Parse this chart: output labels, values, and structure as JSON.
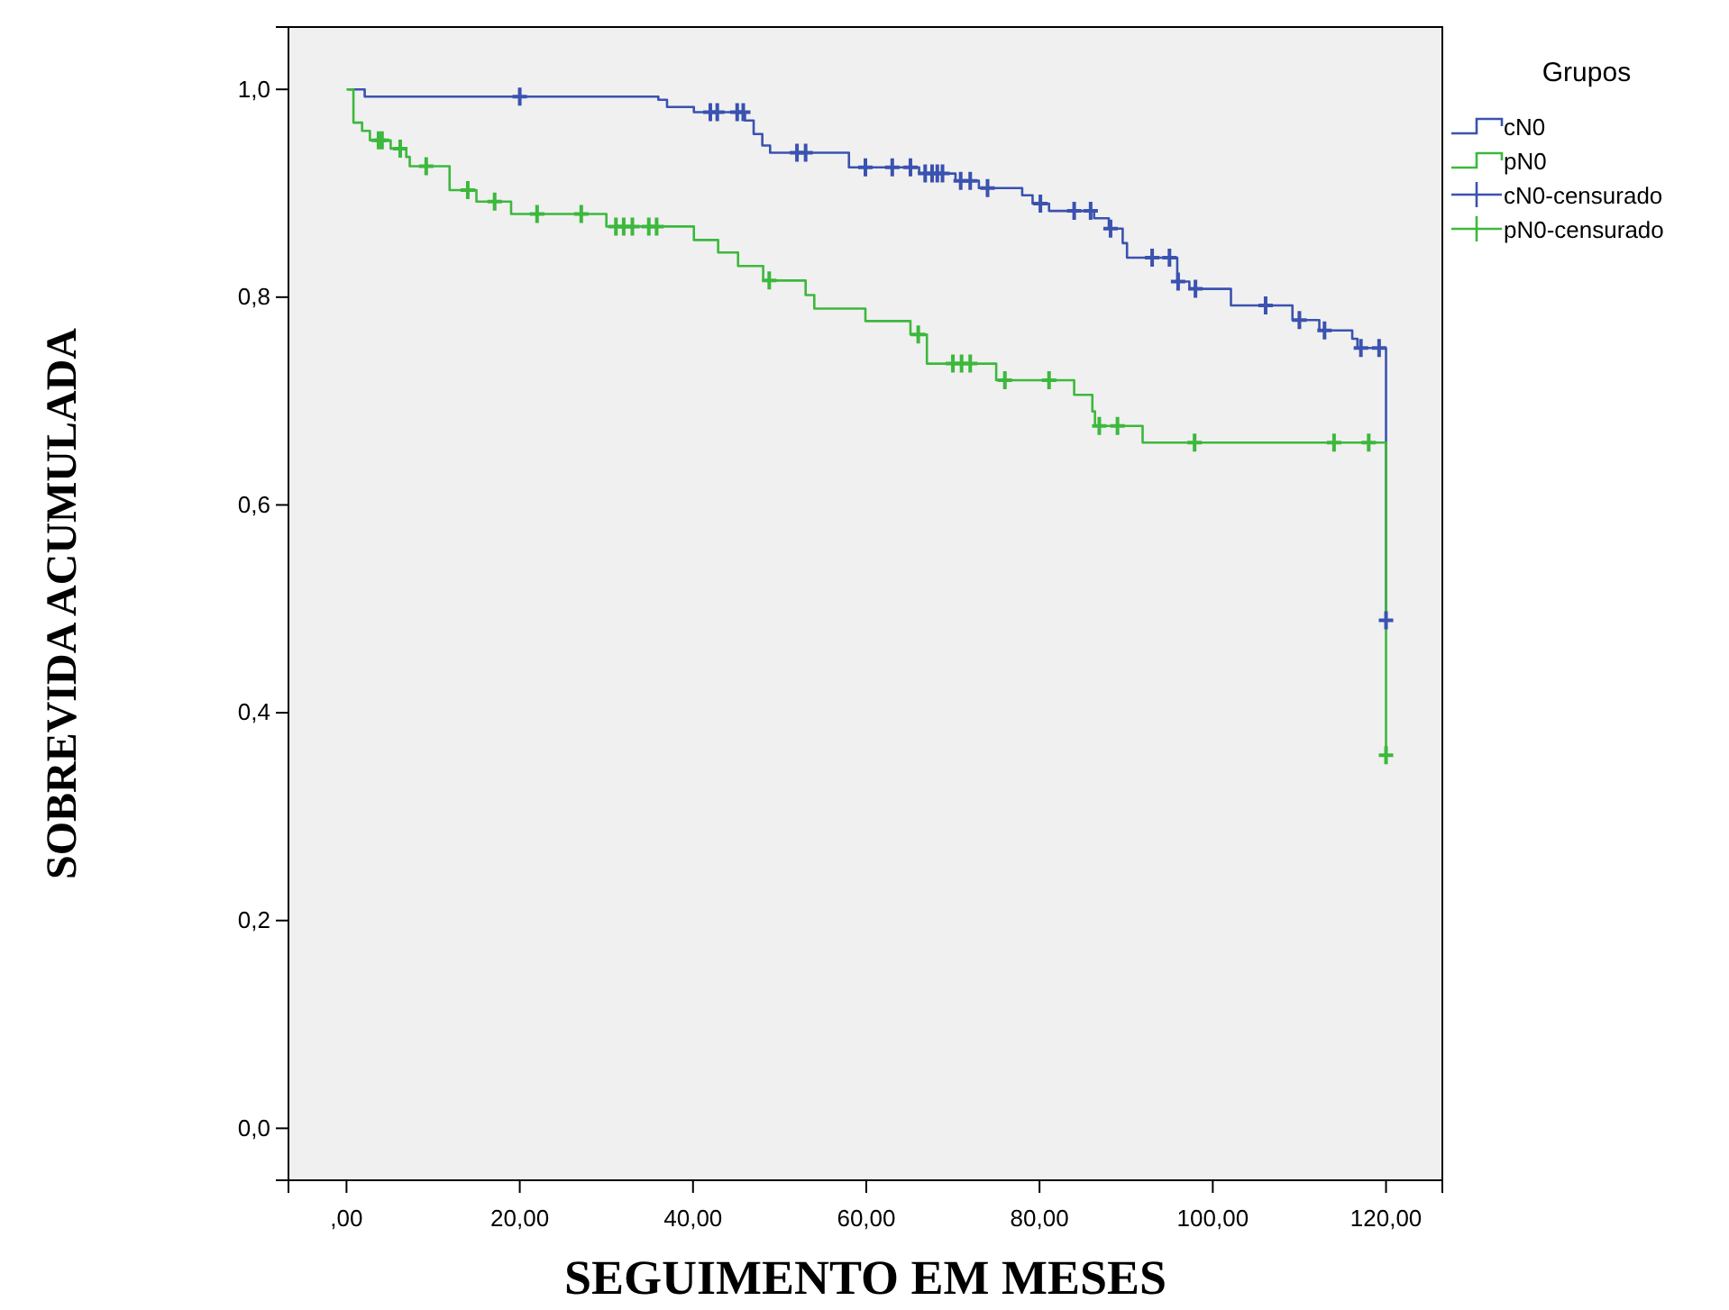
{
  "chart_data": {
    "type": "step",
    "xlabel": "SEGUIMENTO EM MESES",
    "ylabel": "SOBREVIDA ACUMULADA",
    "legend_title": "Grupos",
    "legend": "top right",
    "grid": false,
    "xlim": [
      -6.7,
      126.5
    ],
    "ylim": [
      -0.05,
      1.06
    ],
    "xticks": [
      {
        "value": 0,
        "label": ",00"
      },
      {
        "value": 20,
        "label": "20,00"
      },
      {
        "value": 40,
        "label": "40,00"
      },
      {
        "value": 60,
        "label": "60,00"
      },
      {
        "value": 80,
        "label": "80,00"
      },
      {
        "value": 100,
        "label": "100,00"
      },
      {
        "value": 120,
        "label": "120,00"
      }
    ],
    "yticks": [
      {
        "value": 0,
        "label": "0,0"
      },
      {
        "value": 0.2,
        "label": "0,2"
      },
      {
        "value": 0.4,
        "label": "0,4"
      },
      {
        "value": 0.6,
        "label": "0,6"
      },
      {
        "value": 0.8,
        "label": "0,8"
      },
      {
        "value": 1,
        "label": "1,0"
      }
    ],
    "series": [
      {
        "name": "cN0",
        "color": "#3a52b0",
        "x": [
          0.2,
          2.1,
          36,
          37,
          40.1,
          46,
          47,
          48,
          48.9,
          58,
          66.1,
          70.3,
          73,
          78,
          79.2,
          81.1,
          86.3,
          88,
          89.6,
          90.1,
          95.9,
          97.3,
          102.1,
          109.2,
          112.3,
          116.1,
          116.7,
          120
        ],
        "values": [
          1,
          0.993,
          0.99,
          0.983,
          0.978,
          0.97,
          0.957,
          0.946,
          0.939,
          0.925,
          0.919,
          0.912,
          0.905,
          0.898,
          0.89,
          0.883,
          0.876,
          0.866,
          0.852,
          0.838,
          0.815,
          0.808,
          0.792,
          0.778,
          0.768,
          0.76,
          0.751,
          0.489
        ]
      },
      {
        "name": "pN0",
        "color": "#3cb83c",
        "x": [
          0,
          0.8,
          1.8,
          2.7,
          5.1,
          6.9,
          7.3,
          11.9,
          15,
          19,
          30,
          40.1,
          42.9,
          45.2,
          48.1,
          53,
          54,
          59.9,
          65.1,
          67,
          75,
          84,
          86.1,
          86.4,
          91.9,
          120
        ],
        "values": [
          1,
          0.968,
          0.96,
          0.951,
          0.943,
          0.935,
          0.926,
          0.903,
          0.892,
          0.88,
          0.868,
          0.855,
          0.843,
          0.83,
          0.816,
          0.802,
          0.789,
          0.777,
          0.764,
          0.736,
          0.72,
          0.706,
          0.69,
          0.676,
          0.66,
          0.359
        ]
      },
      {
        "name": "cN0-censurado",
        "type": "scatter",
        "marker": "cross",
        "color": "#3a52b0",
        "x": [
          20,
          42,
          42.8,
          45.1,
          45.8,
          52,
          53,
          59.9,
          63,
          65.1,
          66.8,
          67.6,
          68.2,
          68.8,
          70.9,
          72,
          74,
          80.1,
          84,
          85.9,
          88.2,
          93,
          95,
          96,
          98,
          106.1,
          110,
          112.9,
          117.1,
          119.2,
          120
        ],
        "values": [
          0.993,
          0.978,
          0.978,
          0.978,
          0.978,
          0.939,
          0.939,
          0.925,
          0.925,
          0.925,
          0.919,
          0.919,
          0.919,
          0.919,
          0.912,
          0.912,
          0.905,
          0.89,
          0.883,
          0.883,
          0.866,
          0.838,
          0.838,
          0.815,
          0.808,
          0.792,
          0.778,
          0.768,
          0.751,
          0.751,
          0.489
        ]
      },
      {
        "name": "pN0-censurado",
        "type": "scatter",
        "marker": "cross",
        "color": "#3cb83c",
        "x": [
          3.7,
          4.1,
          6.2,
          9.2,
          14,
          17.1,
          22,
          27.1,
          31.1,
          32,
          33,
          34.9,
          35.8,
          48.8,
          66,
          70,
          71,
          72,
          76,
          81.1,
          86.9,
          89,
          97.9,
          114,
          118,
          120
        ],
        "values": [
          0.951,
          0.951,
          0.943,
          0.926,
          0.903,
          0.892,
          0.88,
          0.88,
          0.868,
          0.868,
          0.868,
          0.868,
          0.868,
          0.816,
          0.764,
          0.736,
          0.736,
          0.736,
          0.72,
          0.72,
          0.676,
          0.676,
          0.66,
          0.66,
          0.66,
          0.359
        ]
      }
    ]
  }
}
